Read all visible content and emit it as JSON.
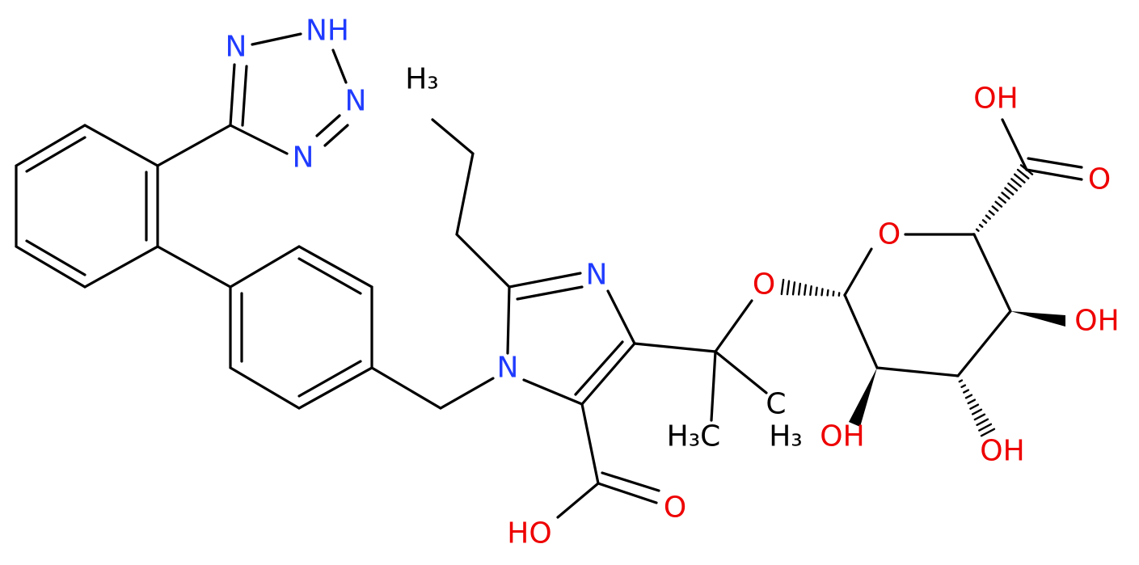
{
  "atoms": [
    {
      "label": "N"
    },
    {
      "label": "NH"
    },
    {
      "label": "N"
    },
    {
      "label": "N"
    },
    {
      "label": "H₃"
    },
    {
      "label": "N"
    },
    {
      "label": "N"
    },
    {
      "label": "O"
    },
    {
      "label": "HO"
    },
    {
      "label": "H₃C"
    },
    {
      "label": "C"
    },
    {
      "label": "H₃"
    },
    {
      "label": "O"
    },
    {
      "label": "O"
    },
    {
      "label": "OH"
    },
    {
      "label": "O"
    },
    {
      "label": "OH"
    },
    {
      "label": "OH"
    },
    {
      "label": "OH"
    }
  ]
}
